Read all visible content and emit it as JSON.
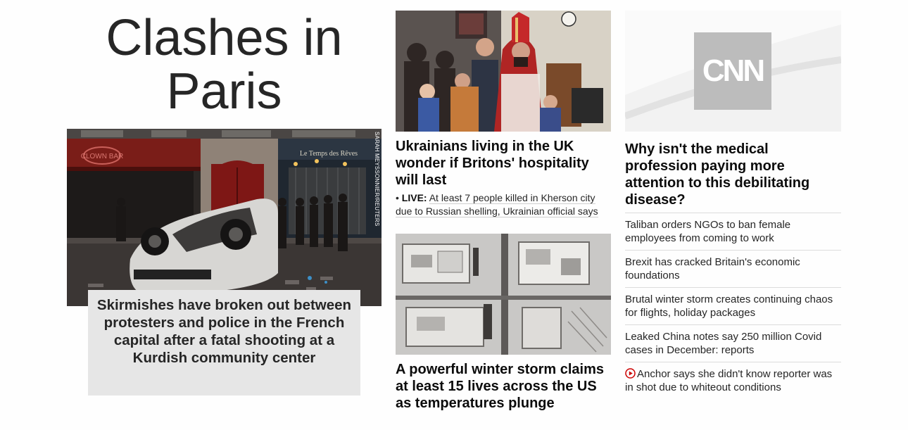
{
  "lead": {
    "headline_line1": "Clashes in",
    "headline_line2": "Paris",
    "photo_credit": "SARAH MEYSSONNIER/REUTERS",
    "photo_storefront_sign": "Le Temps des Rêves",
    "photo_clown_bar_sign": "CLOWN BAR",
    "caption": "Skirmishes have broken out between protesters and police in the French capital after a fatal shooting at a Kurdish community center"
  },
  "stories": [
    {
      "title": "Ukrainians living in the UK wonder if Britons' hospitality will last",
      "live_label": "LIVE:",
      "live_text": "At least 7 people killed in Kherson city due to Russian shelling, Ukrainian official says"
    },
    {
      "title": "A powerful winter storm claims at least 15 lives across the US as temperatures plunge"
    },
    {
      "title": "Why isn't the medical profession paying more attention to this debilitating disease?",
      "logo_text": "CNN"
    }
  ],
  "headlines": [
    {
      "text": "Taliban orders NGOs to ban female employees from coming to work",
      "icon": ""
    },
    {
      "text": "Brexit has cracked Britain's economic foundations",
      "icon": ""
    },
    {
      "text": "Brutal winter storm creates continuing chaos for flights, holiday packages",
      "icon": ""
    },
    {
      "text": "Leaked China notes say 250 million Covid cases in December: reports",
      "icon": ""
    },
    {
      "text": "Anchor says she didn't know reporter was in shot due to whiteout conditions",
      "icon": "play-icon"
    }
  ],
  "colors": {
    "accent_red": "#cc0000",
    "caption_bg": "#e6e6e6",
    "text_dark": "#0c0c0c",
    "divider": "#dcdcdc"
  }
}
